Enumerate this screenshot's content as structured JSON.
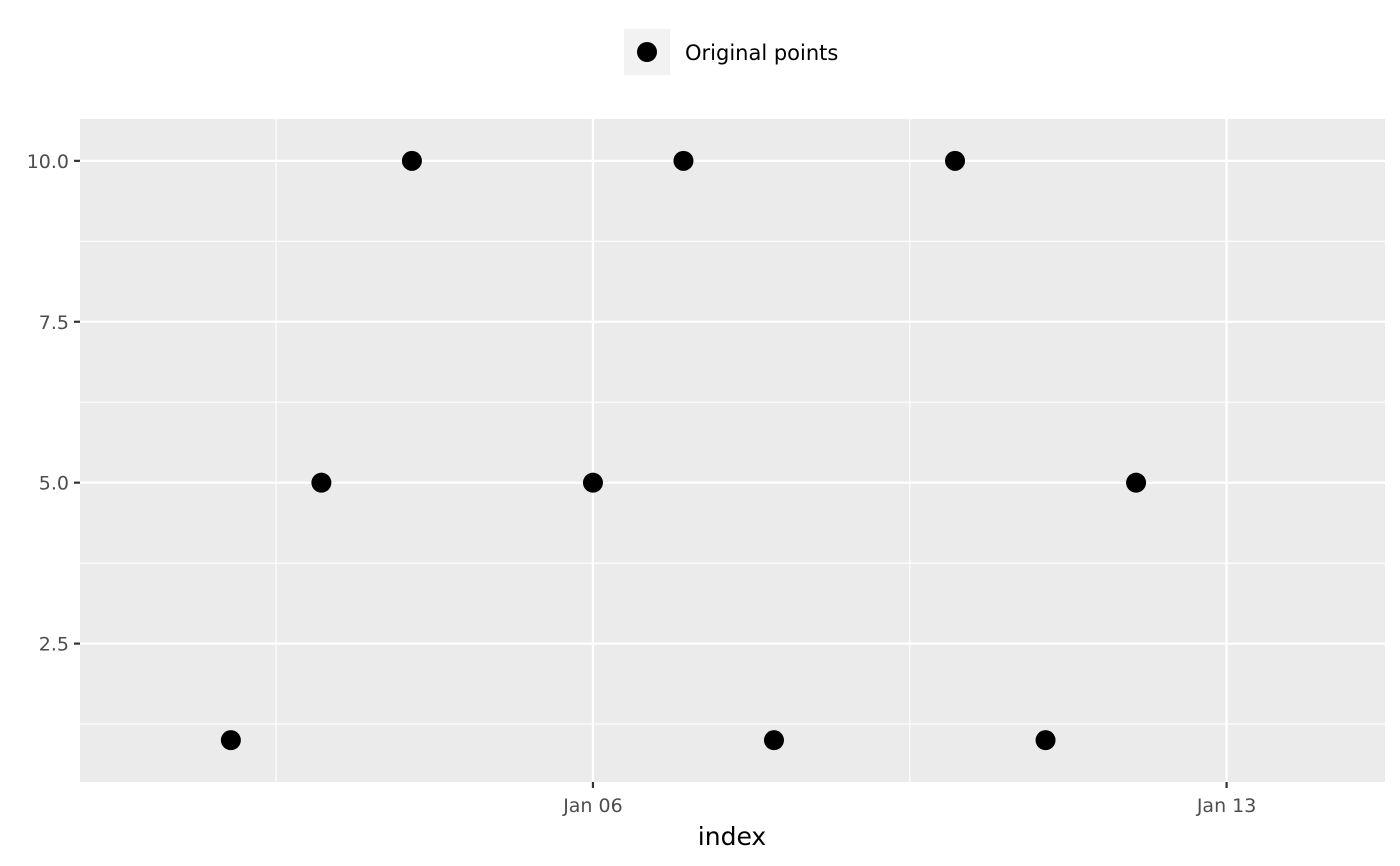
{
  "chart_data": {
    "type": "scatter",
    "title": "",
    "xlabel": "index",
    "ylabel": "",
    "x_type": "date",
    "x": [
      "2024-01-02",
      "2024-01-03",
      "2024-01-04",
      "2024-01-06",
      "2024-01-07",
      "2024-01-08",
      "2024-01-10",
      "2024-01-11",
      "2024-01-12"
    ],
    "series": [
      {
        "name": "Original points",
        "values": [
          1,
          5,
          10,
          5,
          10,
          1,
          10,
          1,
          5
        ]
      }
    ],
    "xlim": [
      "2023-12-31T08:00",
      "2024-01-14T18:00"
    ],
    "ylim": [
      0.35,
      10.65
    ],
    "x_ticks": [
      {
        "value": "2024-01-06",
        "label": "Jan 06"
      },
      {
        "value": "2024-01-13",
        "label": "Jan 13"
      }
    ],
    "x_minor_ticks": [
      "2024-01-02T12:00",
      "2024-01-09T12:00"
    ],
    "y_ticks": [
      {
        "value": 2.5,
        "label": "2.5"
      },
      {
        "value": 5.0,
        "label": "5.0"
      },
      {
        "value": 7.5,
        "label": "7.5"
      },
      {
        "value": 10.0,
        "label": "10.0"
      }
    ],
    "y_minor_ticks": [
      1.25,
      3.75,
      6.25,
      8.75
    ],
    "grid": true,
    "legend_position": "top",
    "colors": {
      "panel": "#ebebeb",
      "grid": "#ffffff",
      "point": "#000000",
      "legend_key": "#f2f2f2"
    }
  }
}
